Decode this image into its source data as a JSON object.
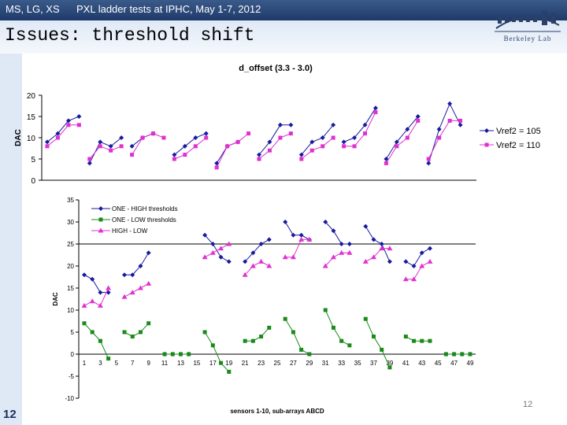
{
  "header": {
    "authors": "MS, LG, XS",
    "title": "PXL ladder tests at IPHC, May 1-7, 2012",
    "logo_text": "Berkeley Lab"
  },
  "slide": {
    "title": "Issues: threshold shift",
    "number": "12",
    "page_number": "12"
  },
  "chart_data": [
    {
      "type": "line",
      "title": "d_offset (3.3 - 3.0)",
      "xlabel": "",
      "ylabel": "DAC",
      "ylim": [
        0,
        20
      ],
      "yticks": [
        0,
        5,
        10,
        15,
        20
      ],
      "grid": false,
      "legend_position": "right",
      "colors": [
        "#1a1aa0",
        "#e030d0"
      ],
      "series": [
        {
          "name": "Vref2 = 105",
          "marker": "diamond",
          "segments": [
            [
              [
                1,
                9
              ],
              [
                2,
                11
              ],
              [
                3,
                14
              ],
              [
                4,
                15
              ]
            ],
            [
              [
                5,
                4
              ],
              [
                6,
                9
              ],
              [
                7,
                8
              ],
              [
                8,
                10
              ]
            ],
            [
              [
                9,
                8
              ],
              [
                10,
                10
              ],
              [
                11,
                11
              ]
            ],
            [
              [
                13,
                6
              ],
              [
                14,
                8
              ],
              [
                15,
                10
              ],
              [
                16,
                11
              ]
            ],
            [
              [
                17,
                4
              ],
              [
                18,
                8
              ],
              [
                19,
                9
              ]
            ],
            [
              [
                21,
                6
              ],
              [
                22,
                9
              ],
              [
                23,
                13
              ],
              [
                24,
                13
              ]
            ],
            [
              [
                25,
                6
              ],
              [
                26,
                9
              ],
              [
                27,
                10
              ],
              [
                28,
                13
              ]
            ],
            [
              [
                29,
                9
              ],
              [
                30,
                10
              ],
              [
                31,
                13
              ],
              [
                32,
                17
              ]
            ],
            [
              [
                33,
                5
              ],
              [
                34,
                9
              ],
              [
                35,
                12
              ],
              [
                36,
                15
              ]
            ],
            [
              [
                37,
                4
              ],
              [
                38,
                12
              ],
              [
                39,
                18
              ],
              [
                40,
                13
              ]
            ]
          ]
        },
        {
          "name": "Vref2 = 110",
          "marker": "square",
          "segments": [
            [
              [
                1,
                8
              ],
              [
                2,
                10
              ],
              [
                3,
                13
              ],
              [
                4,
                13
              ]
            ],
            [
              [
                5,
                5
              ],
              [
                6,
                8
              ],
              [
                7,
                7
              ],
              [
                8,
                8
              ]
            ],
            [
              [
                9,
                6
              ],
              [
                10,
                10
              ],
              [
                11,
                11
              ],
              [
                12,
                10
              ]
            ],
            [
              [
                13,
                5
              ],
              [
                14,
                6
              ],
              [
                15,
                8
              ],
              [
                16,
                10
              ]
            ],
            [
              [
                17,
                3
              ],
              [
                18,
                8
              ],
              [
                19,
                9
              ],
              [
                20,
                11
              ]
            ],
            [
              [
                21,
                5
              ],
              [
                22,
                7
              ],
              [
                23,
                10
              ],
              [
                24,
                11
              ]
            ],
            [
              [
                25,
                5
              ],
              [
                26,
                7
              ],
              [
                27,
                8
              ],
              [
                28,
                10
              ]
            ],
            [
              [
                29,
                8
              ],
              [
                30,
                8
              ],
              [
                31,
                11
              ],
              [
                32,
                16
              ]
            ],
            [
              [
                33,
                4
              ],
              [
                34,
                8
              ],
              [
                35,
                10
              ],
              [
                36,
                14
              ]
            ],
            [
              [
                37,
                5
              ],
              [
                38,
                10
              ],
              [
                39,
                14
              ],
              [
                40,
                14
              ]
            ]
          ]
        }
      ]
    },
    {
      "type": "line",
      "title": "",
      "xlabel": "sensors 1-10, sub-arrays ABCD",
      "ylabel": "DAC",
      "ylim": [
        -10,
        35
      ],
      "yticks": [
        -10,
        -5,
        0,
        5,
        10,
        15,
        20,
        25,
        30,
        35
      ],
      "x_tick_labels": [
        1,
        3,
        5,
        7,
        9,
        11,
        13,
        15,
        17,
        19,
        21,
        23,
        25,
        27,
        29,
        31,
        33,
        35,
        37,
        39,
        41,
        43,
        45,
        47,
        49
      ],
      "xlim": [
        1,
        49
      ],
      "hlines": [
        0,
        25
      ],
      "grid": false,
      "legend_position": "top-left",
      "colors": [
        "#1a1aa0",
        "#1a8a1a",
        "#e030d0"
      ],
      "series": [
        {
          "name": "ONE - HIGH thresholds",
          "marker": "diamond",
          "segments": [
            [
              [
                1,
                18
              ],
              [
                2,
                17
              ],
              [
                3,
                14
              ],
              [
                4,
                14
              ]
            ],
            [
              [
                6,
                18
              ],
              [
                7,
                18
              ],
              [
                8,
                20
              ],
              [
                9,
                23
              ]
            ],
            [
              [
                11,
                0
              ],
              [
                12,
                0
              ],
              [
                13,
                0
              ],
              [
                14,
                0
              ]
            ],
            [
              [
                16,
                27
              ],
              [
                17,
                25
              ],
              [
                18,
                22
              ],
              [
                19,
                21
              ]
            ],
            [
              [
                21,
                21
              ],
              [
                22,
                23
              ],
              [
                23,
                25
              ],
              [
                24,
                26
              ]
            ],
            [
              [
                26,
                30
              ],
              [
                27,
                27
              ],
              [
                28,
                27
              ],
              [
                29,
                26
              ]
            ],
            [
              [
                31,
                30
              ],
              [
                32,
                28
              ],
              [
                33,
                25
              ],
              [
                34,
                25
              ]
            ],
            [
              [
                36,
                29
              ],
              [
                37,
                26
              ],
              [
                38,
                25
              ],
              [
                39,
                21
              ]
            ],
            [
              [
                41,
                21
              ],
              [
                42,
                20
              ],
              [
                43,
                23
              ],
              [
                44,
                24
              ]
            ],
            [
              [
                46,
                0
              ],
              [
                47,
                0
              ],
              [
                48,
                0
              ],
              [
                49,
                0
              ]
            ]
          ]
        },
        {
          "name": "ONE - LOW thresholds",
          "marker": "square",
          "segments": [
            [
              [
                1,
                7
              ],
              [
                2,
                5
              ],
              [
                3,
                3
              ],
              [
                4,
                -1
              ]
            ],
            [
              [
                6,
                5
              ],
              [
                7,
                4
              ],
              [
                8,
                5
              ],
              [
                9,
                7
              ]
            ],
            [
              [
                11,
                0
              ],
              [
                12,
                0
              ],
              [
                13,
                0
              ],
              [
                14,
                0
              ]
            ],
            [
              [
                16,
                5
              ],
              [
                17,
                2
              ],
              [
                18,
                -2
              ],
              [
                19,
                -4
              ]
            ],
            [
              [
                21,
                3
              ],
              [
                22,
                3
              ],
              [
                23,
                4
              ],
              [
                24,
                6
              ]
            ],
            [
              [
                26,
                8
              ],
              [
                27,
                5
              ],
              [
                28,
                1
              ],
              [
                29,
                0
              ]
            ],
            [
              [
                31,
                10
              ],
              [
                32,
                6
              ],
              [
                33,
                3
              ],
              [
                34,
                2
              ]
            ],
            [
              [
                36,
                8
              ],
              [
                37,
                4
              ],
              [
                38,
                1
              ],
              [
                39,
                -3
              ]
            ],
            [
              [
                41,
                4
              ],
              [
                42,
                3
              ],
              [
                43,
                3
              ],
              [
                44,
                3
              ]
            ],
            [
              [
                46,
                0
              ],
              [
                47,
                0
              ],
              [
                48,
                0
              ],
              [
                49,
                0
              ]
            ]
          ]
        },
        {
          "name": "HIGH - LOW",
          "marker": "triangle",
          "segments": [
            [
              [
                1,
                11
              ],
              [
                2,
                12
              ],
              [
                3,
                11
              ],
              [
                4,
                15
              ]
            ],
            [
              [
                6,
                13
              ],
              [
                7,
                14
              ],
              [
                8,
                15
              ],
              [
                9,
                16
              ]
            ],
            [
              [
                16,
                22
              ],
              [
                17,
                23
              ],
              [
                18,
                24
              ],
              [
                19,
                25
              ]
            ],
            [
              [
                21,
                18
              ],
              [
                22,
                20
              ],
              [
                23,
                21
              ],
              [
                24,
                20
              ]
            ],
            [
              [
                26,
                22
              ],
              [
                27,
                22
              ],
              [
                28,
                26
              ],
              [
                29,
                26
              ]
            ],
            [
              [
                31,
                20
              ],
              [
                32,
                22
              ],
              [
                33,
                23
              ],
              [
                34,
                23
              ]
            ],
            [
              [
                36,
                21
              ],
              [
                37,
                22
              ],
              [
                38,
                24
              ],
              [
                39,
                24
              ]
            ],
            [
              [
                41,
                17
              ],
              [
                42,
                17
              ],
              [
                43,
                20
              ],
              [
                44,
                21
              ]
            ]
          ]
        }
      ]
    }
  ]
}
